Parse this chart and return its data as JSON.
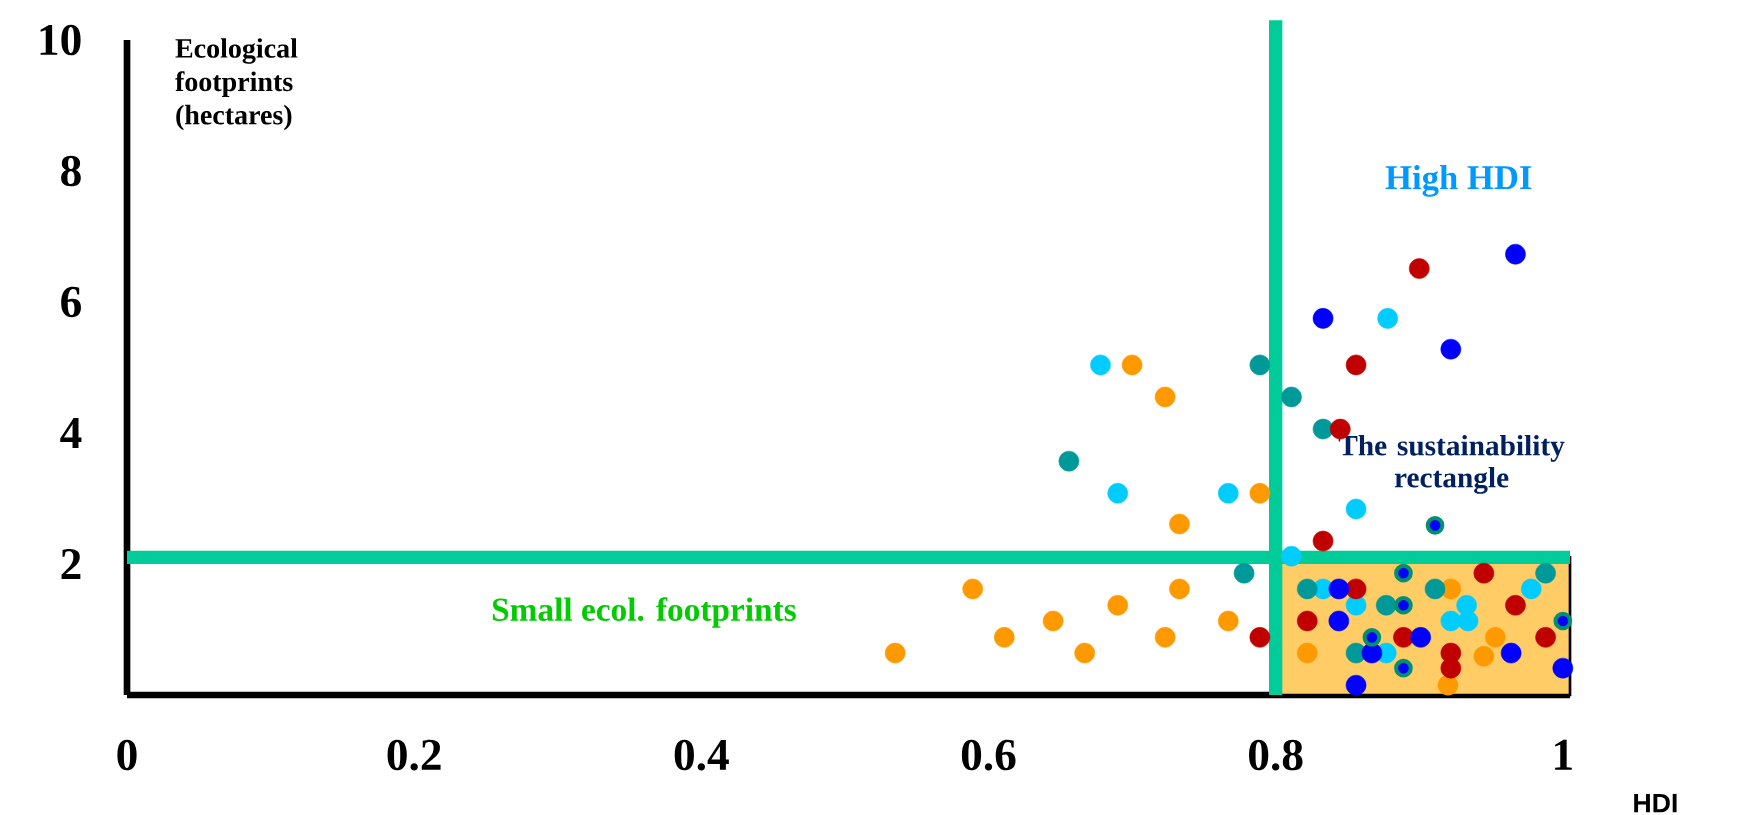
{
  "chart_data": {
    "type": "scatter",
    "xlabel": "HDI",
    "ylabel": "Ecological footprints (hectares)",
    "xlim": [
      0,
      1.005
    ],
    "ylim": [
      0,
      10
    ],
    "xticks": [
      0,
      0.2,
      0.4,
      0.6,
      0.8,
      1
    ],
    "yticks": [
      2,
      4,
      6,
      8,
      10
    ],
    "annotations": [
      "High HDI"
    ],
    "ref_lines": [
      {
        "axis": "x",
        "value": 0.8,
        "color": "#00cc99"
      },
      {
        "axis": "y",
        "value": 2.1,
        "label": "Small ecol. footprints",
        "color": "#00cc99"
      }
    ],
    "bands": [
      {
        "axis": "y",
        "from": 0,
        "to": 2.1,
        "label": "The sustainability rectangle",
        "color": "#ffcc66"
      }
    ],
    "series": [
      {
        "color": "#ff9900",
        "x": [
          0.535,
          0.589,
          0.611,
          0.645,
          0.667,
          0.69,
          0.7,
          0.723,
          0.723,
          0.733,
          0.733,
          0.767,
          0.789,
          0.822,
          0.922,
          0.953,
          0.945,
          0.92
        ],
        "values": [
          0.64,
          1.62,
          0.88,
          1.13,
          0.64,
          1.37,
          5.04,
          4.55,
          0.88,
          2.61,
          1.62,
          1.13,
          3.08,
          0.64,
          1.62,
          0.88,
          0.59,
          0.15
        ]
      },
      {
        "color": "#00ccff",
        "x": [
          0.678,
          0.69,
          0.767,
          0.811,
          0.833,
          0.856,
          0.856,
          0.878,
          0.877,
          0.922,
          0.934,
          0.933,
          0.978
        ],
        "values": [
          5.04,
          3.08,
          3.08,
          2.12,
          1.62,
          1.37,
          2.84,
          5.75,
          0.64,
          1.13,
          1.13,
          1.37,
          1.62
        ]
      },
      {
        "color": "#009999",
        "x": [
          0.656,
          0.789,
          0.811,
          0.833,
          0.778,
          0.822,
          0.877,
          0.911,
          0.988,
          0.856
        ],
        "values": [
          3.57,
          5.04,
          4.55,
          4.06,
          1.86,
          1.62,
          1.37,
          1.62,
          1.86,
          0.64
        ]
      },
      {
        "color": "#c00000",
        "x": [
          0.789,
          0.822,
          0.833,
          0.845,
          0.856,
          0.9,
          0.856,
          0.889,
          0.922,
          0.922,
          0.945,
          0.967,
          0.988
        ],
        "values": [
          0.88,
          1.13,
          2.35,
          4.06,
          5.04,
          6.51,
          1.62,
          0.88,
          0.64,
          0.41,
          1.86,
          1.37,
          0.88
        ]
      },
      {
        "color": "#0000ff",
        "x": [
          0.833,
          0.922,
          0.967,
          0.844,
          0.844,
          0.901,
          0.867,
          0.856,
          0.964,
          1.0
        ],
        "values": [
          5.75,
          5.28,
          6.73,
          1.62,
          1.13,
          0.88,
          0.64,
          0.15,
          0.64,
          0.41
        ]
      },
      {
        "color": "#00916e",
        "x": [
          0.911,
          0.889,
          0.889,
          0.867,
          0.889,
          1.0
        ],
        "values": [
          2.59,
          1.86,
          1.37,
          0.88,
          0.41,
          1.13
        ]
      }
    ]
  }
}
